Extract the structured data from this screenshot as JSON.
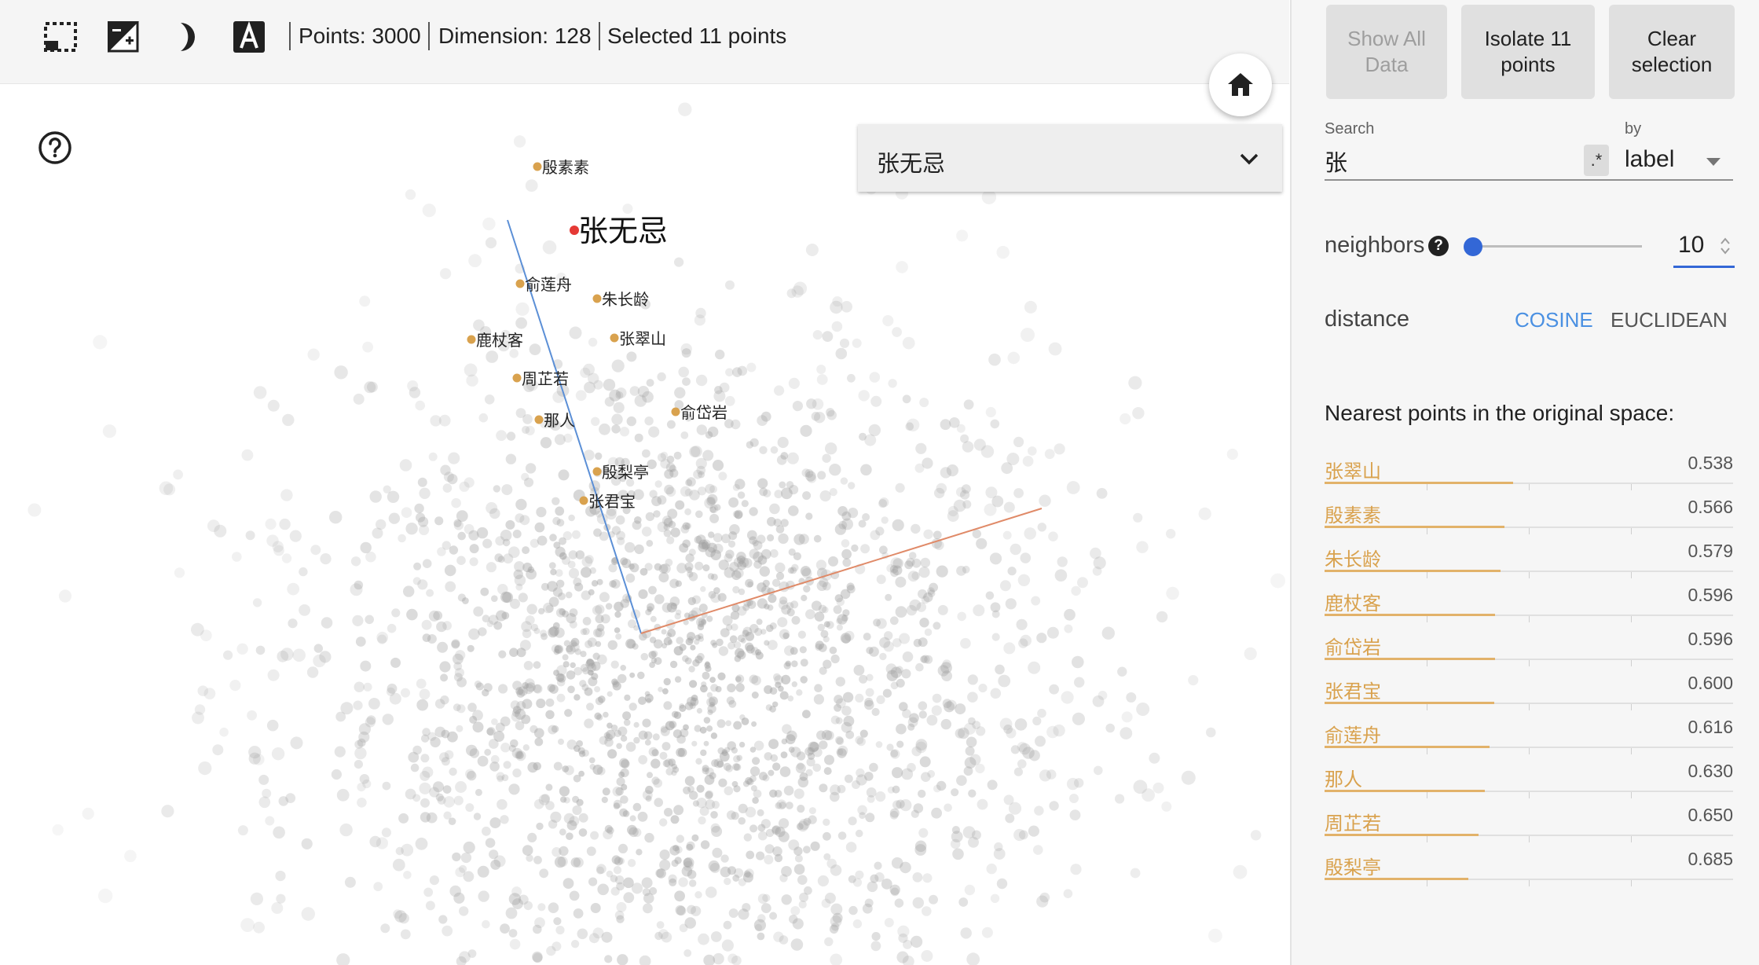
{
  "toolbar": {
    "points_label": "Points: 3000",
    "dimension_label": "Dimension: 128",
    "selection_label": "Selected 11 points",
    "icons": [
      "bounding-box-select-icon",
      "night-mode-icon",
      "half-moon-icon",
      "label-toggle-icon"
    ]
  },
  "label_select": {
    "value": "张无忌"
  },
  "panel": {
    "show_all_label": "Show All Data",
    "isolate_label": "Isolate 11 points",
    "clear_label": "Clear selection",
    "search_label": "Search",
    "search_value": "张",
    "regex_label": ".*",
    "by_label": "by",
    "by_value": "label",
    "neighbors_label": "neighbors",
    "neighbors_value": "10",
    "neighbors_slider_fraction": 0.0,
    "distance_label": "distance",
    "cosine_label": "COSINE",
    "euclidean_label": "EUCLIDEAN",
    "nearest_title": "Nearest points in the original space:",
    "nearest": [
      {
        "label": "张翠山",
        "value": "0.538"
      },
      {
        "label": "殷素素",
        "value": "0.566"
      },
      {
        "label": "朱长龄",
        "value": "0.579"
      },
      {
        "label": "鹿杖客",
        "value": "0.596"
      },
      {
        "label": "俞岱岩",
        "value": "0.596"
      },
      {
        "label": "张君宝",
        "value": "0.600"
      },
      {
        "label": "俞莲舟",
        "value": "0.616"
      },
      {
        "label": "那人",
        "value": "0.630"
      },
      {
        "label": "周芷若",
        "value": "0.650"
      },
      {
        "label": "殷梨亭",
        "value": "0.685"
      }
    ]
  },
  "projection": {
    "selected_label": "张无忌",
    "neighbor_labels": [
      "殷素素",
      "俞莲舟",
      "朱长龄",
      "鹿杖客",
      "张翠山",
      "周芷若",
      "俞岱岩",
      "那人",
      "殷梨亭",
      "张君宝"
    ]
  },
  "colors": {
    "accent": "#3367d6",
    "neighbor": "#d9a24e",
    "selected_point": "#e53935",
    "cosine_active": "#4a90e2"
  }
}
